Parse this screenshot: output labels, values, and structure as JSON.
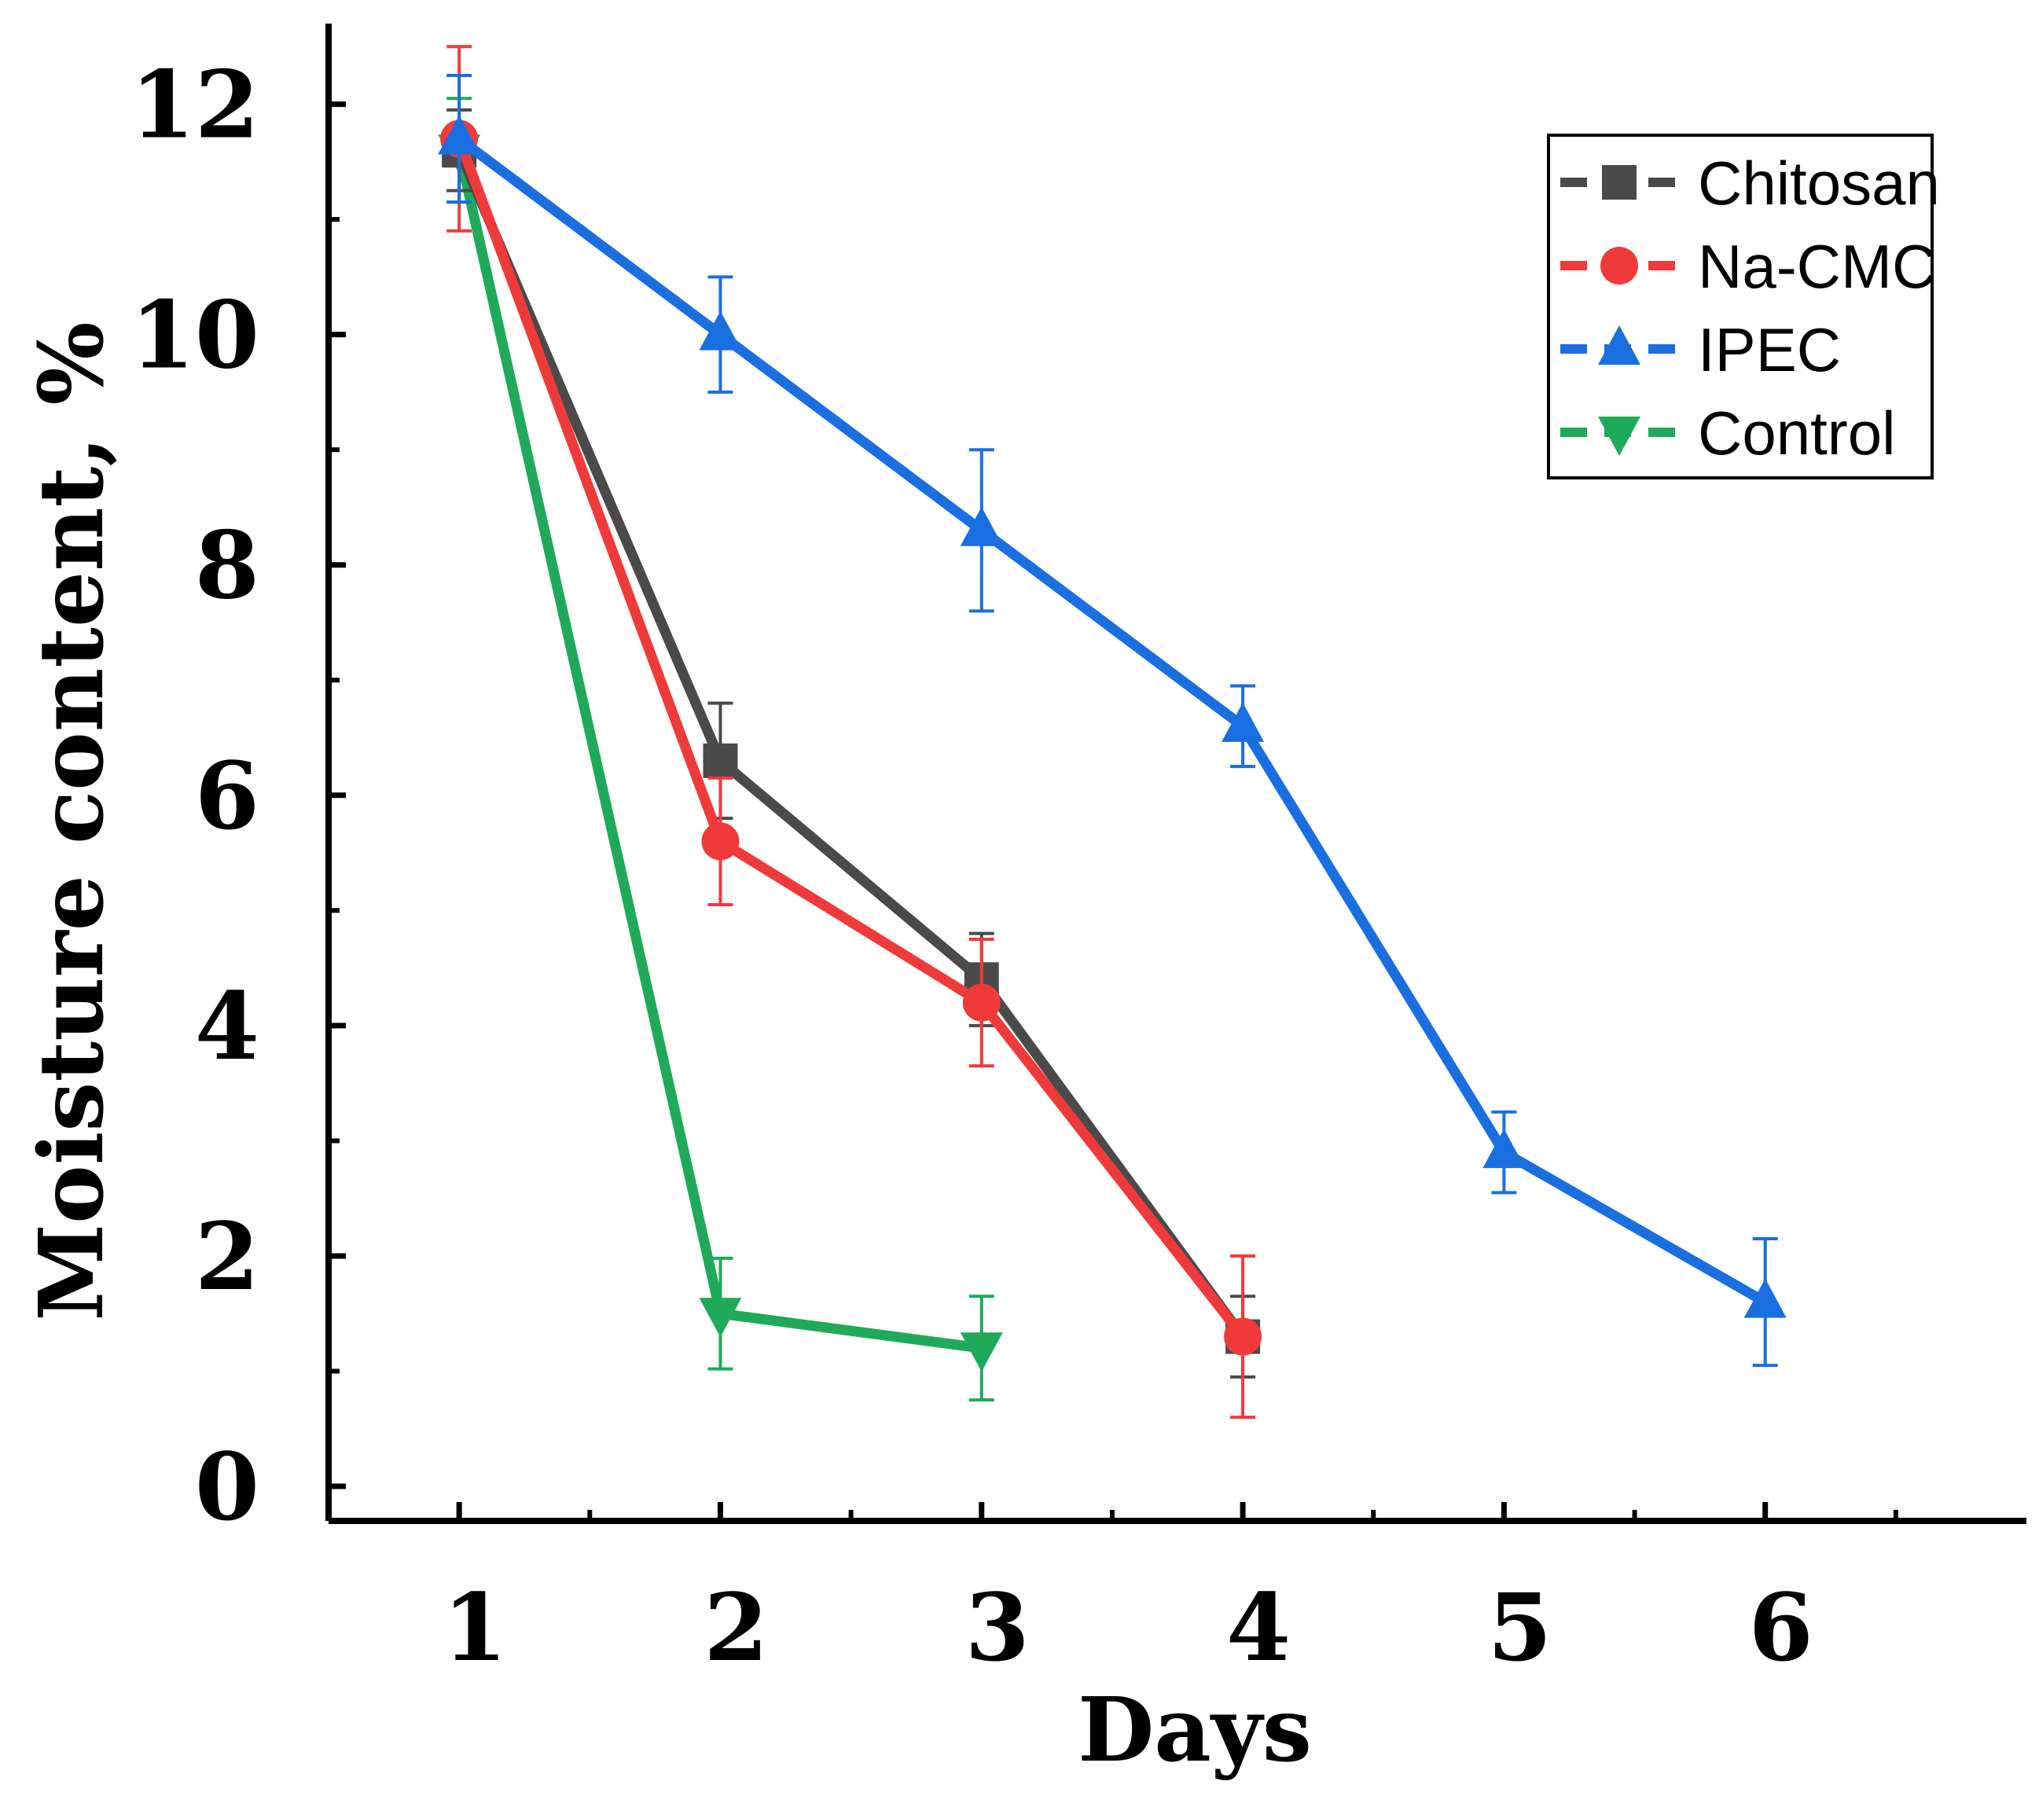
{
  "chart_data": {
    "type": "line",
    "title": "",
    "xlabel": "Days",
    "ylabel": "Moisture content, %",
    "x_ticks": [
      "1",
      "2",
      "3",
      "4",
      "5",
      "6"
    ],
    "y_ticks": [
      "0",
      "2",
      "4",
      "6",
      "8",
      "10",
      "12"
    ],
    "xlim": [
      0.5,
      7.0
    ],
    "ylim": [
      -0.3,
      12.7
    ],
    "legend_position": "top-right",
    "series": [
      {
        "name": "Chitosan",
        "color": "#4a4a4a",
        "marker": "square",
        "x": [
          1,
          2,
          3,
          4
        ],
        "y": [
          11.6,
          6.3,
          4.4,
          1.3
        ],
        "err": [
          0.35,
          0.5,
          0.4,
          0.35
        ]
      },
      {
        "name": "Na-CMC",
        "color": "#f03a3a",
        "marker": "circle",
        "x": [
          1,
          2,
          3,
          4
        ],
        "y": [
          11.7,
          5.6,
          4.2,
          1.3
        ],
        "err": [
          0.8,
          0.55,
          0.55,
          0.7
        ]
      },
      {
        "name": "IPEC",
        "color": "#1a6fe0",
        "marker": "triangle-up",
        "x": [
          1,
          2,
          3,
          4,
          5,
          6
        ],
        "y": [
          11.7,
          10.0,
          8.3,
          6.6,
          2.9,
          1.6
        ],
        "err": [
          0.55,
          0.5,
          0.7,
          0.35,
          0.35,
          0.55
        ]
      },
      {
        "name": "Control",
        "color": "#1faa5a",
        "marker": "triangle-down",
        "x": [
          1,
          2,
          3
        ],
        "y": [
          11.6,
          1.5,
          1.2
        ],
        "err": [
          0.45,
          0.48,
          0.45
        ]
      }
    ]
  }
}
